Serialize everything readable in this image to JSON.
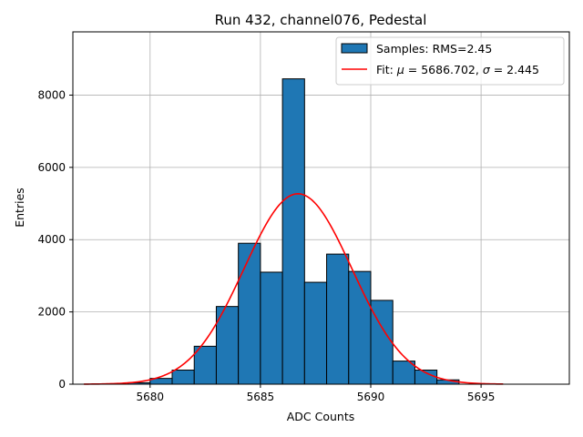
{
  "chart_data": {
    "type": "bar",
    "title": "Run 432, channel076, Pedestal",
    "xlabel": "ADC Counts",
    "ylabel": "Entries",
    "xlim": [
      5676.5,
      5699
    ],
    "ylim": [
      0,
      9750
    ],
    "grid": true,
    "legend_position": "top-right",
    "x_ticks": [
      5680,
      5685,
      5690,
      5695
    ],
    "y_ticks": [
      0,
      2000,
      4000,
      6000,
      8000
    ],
    "bin_width": 1,
    "bar_color": "#1f77b4",
    "fit_color": "#ff0000",
    "histogram": {
      "name": "Samples: RMS=2.45",
      "bin_left_edges": [
        5679,
        5680,
        5681,
        5682,
        5683,
        5684,
        5685,
        5686,
        5687,
        5688,
        5689,
        5690,
        5691,
        5692,
        5693
      ],
      "values": [
        40,
        160,
        390,
        1050,
        2150,
        3900,
        3100,
        8450,
        2820,
        3600,
        3120,
        2320,
        640,
        390,
        120
      ]
    },
    "fit": {
      "legend_prefix": "Fit: ",
      "mu_label": "μ",
      "mu_text": " = 5686.702, ",
      "sigma_label": "σ",
      "sigma_text": " = 2.445",
      "mu": 5686.702,
      "sigma": 2.445,
      "amplitude": 5270,
      "x_range": [
        5677,
        5696
      ]
    }
  }
}
